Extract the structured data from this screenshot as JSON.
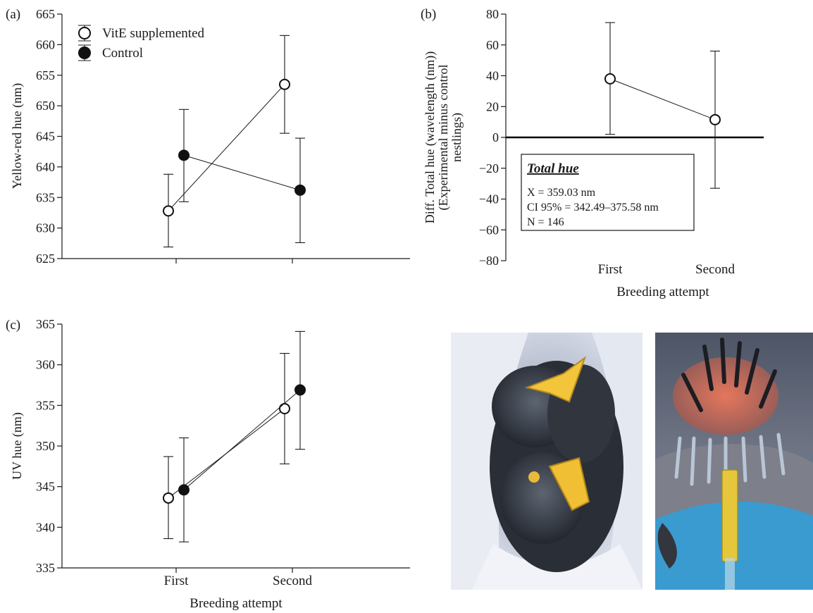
{
  "panels": {
    "a": {
      "tag": "(a)"
    },
    "b": {
      "tag": "(b)"
    },
    "c": {
      "tag": "(c)"
    }
  },
  "chart_data": [
    {
      "panel": "a",
      "type": "line",
      "categories": [
        "First",
        "Second"
      ],
      "category_labels_shown": false,
      "ylabel": "Yellow-red hue (nm)",
      "xlabel": "",
      "ylim": [
        625,
        665
      ],
      "yticks": [
        625,
        630,
        635,
        640,
        645,
        650,
        655,
        660,
        665
      ],
      "legend": {
        "placement": "top-left"
      },
      "series": [
        {
          "name": "VitE supplemented",
          "marker": "open-circle",
          "values": [
            632.8,
            653.5
          ],
          "lower": [
            626.9,
            645.5
          ],
          "upper": [
            638.8,
            661.5
          ]
        },
        {
          "name": "Control",
          "marker": "filled-circle",
          "values": [
            641.9,
            636.2
          ],
          "lower": [
            634.3,
            627.6
          ],
          "upper": [
            649.4,
            644.7
          ]
        }
      ]
    },
    {
      "panel": "b",
      "type": "line",
      "categories": [
        "First",
        "Second"
      ],
      "ylabel": "Diff. Total hue (wavelength (nm)) (Experimental minus control nestlings)",
      "ylabel_lines": [
        "Diff. Total hue (wavelength (nm))",
        "(Experimental minus control",
        "nestlings)"
      ],
      "xlabel": "Breeding attempt",
      "ylim": [
        -80,
        80
      ],
      "yticks": [
        -80,
        -60,
        -40,
        -20,
        0,
        20,
        40,
        60,
        80
      ],
      "reference_line": 0,
      "series": [
        {
          "marker": "open-circle",
          "values": [
            38,
            11.5
          ],
          "lower": [
            2,
            -33
          ],
          "upper": [
            74.5,
            56
          ]
        }
      ],
      "annotation": {
        "title": "Total hue",
        "lines": [
          "X = 359.03 nm",
          "CI 95% = 342.49–375.58 nm",
          "N = 146"
        ]
      }
    },
    {
      "panel": "c",
      "type": "line",
      "categories": [
        "First",
        "Second"
      ],
      "ylabel": "UV hue (nm)",
      "xlabel": "Breeding attempt",
      "ylim": [
        335,
        365
      ],
      "yticks": [
        335,
        340,
        345,
        350,
        355,
        360,
        365
      ],
      "series": [
        {
          "name": "VitE supplemented",
          "marker": "open-circle",
          "values": [
            343.6,
            354.6
          ],
          "lower": [
            338.6,
            347.8
          ],
          "upper": [
            348.7,
            361.4
          ]
        },
        {
          "name": "Control",
          "marker": "filled-circle",
          "values": [
            344.6,
            356.9
          ],
          "lower": [
            338.2,
            349.6
          ],
          "upper": [
            351.0,
            364.1
          ]
        }
      ]
    }
  ]
}
